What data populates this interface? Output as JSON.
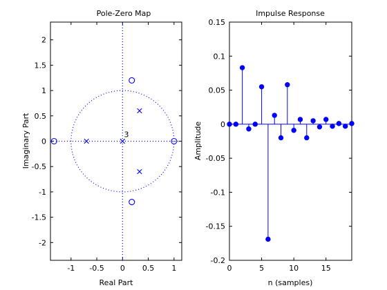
{
  "chart_data": [
    {
      "type": "scatter",
      "title": "Pole-Zero Map",
      "xlabel": "Real Part",
      "ylabel": "Imaginary Part",
      "xlim": [
        -1.4,
        1.15
      ],
      "ylim": [
        -2.35,
        2.35
      ],
      "xticks": [
        -1,
        -0.5,
        0,
        0.5,
        1
      ],
      "xtick_labels": [
        "-1",
        "-0.5",
        "0",
        "0.5",
        "1"
      ],
      "yticks": [
        -2,
        -1.5,
        -1,
        -0.5,
        0,
        0.5,
        1,
        1.5,
        2
      ],
      "ytick_labels": [
        "-2",
        "-1.5",
        "-1",
        "-0.5",
        "0",
        "0.5",
        "1",
        "1.5",
        "2"
      ],
      "grid": false,
      "unit_circle": true,
      "zeros": [
        {
          "x": -1.33,
          "y": 0
        },
        {
          "x": 1.0,
          "y": 0
        },
        {
          "x": 0.18,
          "y": 1.2
        },
        {
          "x": 0.18,
          "y": -1.2
        }
      ],
      "poles": [
        {
          "x": -0.7,
          "y": 0
        },
        {
          "x": 0,
          "y": 0
        },
        {
          "x": 0.33,
          "y": 0.6
        },
        {
          "x": 0.33,
          "y": -0.6
        }
      ],
      "annotations": [
        {
          "text": "3",
          "x": 0.03,
          "y": 0.08
        }
      ],
      "colors": {
        "marker": "#0000ff",
        "axes": "#000000"
      }
    },
    {
      "type": "stem",
      "title": "Impulse Response",
      "xlabel": "n (samples)",
      "ylabel": "Amplitude",
      "xlim": [
        0,
        19
      ],
      "ylim": [
        -0.2,
        0.15
      ],
      "xticks": [
        0,
        5,
        10,
        15
      ],
      "xtick_labels": [
        "0",
        "5",
        "10",
        "15"
      ],
      "yticks": [
        -0.2,
        -0.15,
        -0.1,
        -0.05,
        0,
        0.05,
        0.1,
        0.15
      ],
      "ytick_labels": [
        "-0.2",
        "-0.15",
        "-0.1",
        "-0.05",
        "0",
        "0.05",
        "0.1",
        "0.15"
      ],
      "grid": false,
      "x": [
        0,
        1,
        2,
        3,
        4,
        5,
        6,
        7,
        8,
        9,
        10,
        11,
        12,
        13,
        14,
        15,
        16,
        17,
        18,
        19
      ],
      "values": [
        0,
        0,
        0.083,
        -0.007,
        0,
        0.055,
        -0.169,
        0.013,
        -0.02,
        0.058,
        -0.009,
        0.007,
        -0.02,
        0.005,
        -0.004,
        0.007,
        -0.003,
        0.001,
        -0.003,
        0.001
      ],
      "colors": {
        "marker": "#0000ff",
        "axes": "#000000"
      }
    }
  ]
}
